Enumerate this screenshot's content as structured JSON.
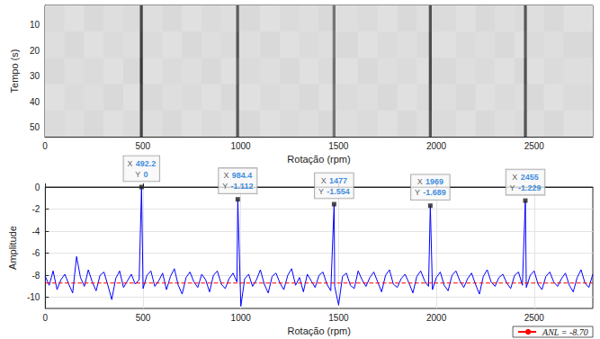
{
  "chart_data": [
    {
      "type": "heatmap",
      "xlabel": "Rotação (rpm)",
      "ylabel": "Tempo (s)",
      "xlim": [
        0,
        2800
      ],
      "xticks": [
        0,
        500,
        1000,
        1500,
        2000,
        2500
      ],
      "ylim": [
        53.5,
        2.5
      ],
      "yticks": [
        10,
        20,
        30,
        40,
        50
      ],
      "grid": false,
      "x_edges": [
        0,
        100,
        200,
        300,
        400,
        485,
        500,
        600,
        700,
        800,
        900,
        977,
        992,
        1100,
        1200,
        1300,
        1400,
        1470,
        1485,
        1600,
        1700,
        1800,
        1900,
        1962,
        1977,
        2100,
        2200,
        2300,
        2400,
        2448,
        2463,
        2550,
        2650,
        2800
      ],
      "y_edges": [
        2.5,
        12.7,
        22.9,
        33.1,
        43.3,
        53.5
      ],
      "clim": [
        -10,
        0
      ],
      "cells": [
        [
          -8.6,
          -8.8,
          -8.5,
          -8.7,
          -8.6,
          -2.8,
          -8.7,
          -8.5,
          -8.8,
          -8.6,
          -8.7,
          -3.6,
          -8.5,
          -8.8,
          -8.6,
          -8.7,
          -8.5,
          -4.6,
          -8.7,
          -8.6,
          -8.8,
          -8.5,
          -8.7,
          -3.2,
          -8.6,
          -8.8,
          -8.5,
          -8.7,
          -8.6,
          -3.4,
          -8.7,
          -8.5,
          -8.8
        ],
        [
          -8.7,
          -8.5,
          -8.8,
          -8.6,
          -8.7,
          -2.5,
          -8.6,
          -8.8,
          -8.5,
          -8.7,
          -8.6,
          -3.3,
          -8.7,
          -8.5,
          -8.8,
          -8.6,
          -8.7,
          -4.8,
          -8.5,
          -8.8,
          -8.6,
          -8.7,
          -8.5,
          -3.0,
          -8.8,
          -8.6,
          -8.7,
          -8.5,
          -8.8,
          -3.6,
          -8.6,
          -8.7,
          -8.5
        ],
        [
          -8.5,
          -8.7,
          -8.6,
          -8.8,
          -8.5,
          -2.2,
          -8.8,
          -8.6,
          -8.7,
          -8.5,
          -8.8,
          -3.8,
          -8.6,
          -8.7,
          -8.5,
          -8.8,
          -8.6,
          -4.4,
          -8.8,
          -8.5,
          -8.7,
          -8.6,
          -8.8,
          -2.9,
          -8.5,
          -8.7,
          -8.6,
          -8.8,
          -8.5,
          -3.2,
          -8.8,
          -8.6,
          -8.7
        ],
        [
          -8.8,
          -8.6,
          -8.7,
          -8.5,
          -8.8,
          -2.6,
          -8.5,
          -8.7,
          -8.6,
          -8.8,
          -8.5,
          -3.5,
          -8.8,
          -8.6,
          -8.7,
          -8.5,
          -8.8,
          -4.7,
          -8.6,
          -8.7,
          -8.5,
          -8.8,
          -8.6,
          -3.1,
          -8.7,
          -8.5,
          -8.8,
          -8.6,
          -8.7,
          -3.5,
          -8.5,
          -8.8,
          -8.6
        ],
        [
          -8.6,
          -8.7,
          -8.5,
          -8.8,
          -8.6,
          -2.7,
          -8.7,
          -8.5,
          -8.8,
          -8.6,
          -8.7,
          -3.4,
          -8.5,
          -8.8,
          -8.6,
          -8.7,
          -8.5,
          -4.5,
          -8.7,
          -8.6,
          -8.8,
          -8.5,
          -8.7,
          -3.3,
          -8.6,
          -8.8,
          -8.5,
          -8.7,
          -8.6,
          -3.3,
          -8.7,
          -8.5,
          -8.8
        ]
      ]
    },
    {
      "type": "line",
      "xlabel": "Rotação (rpm)",
      "ylabel": "Amplitude",
      "color": "#0000ff",
      "xlim": [
        0,
        2800
      ],
      "xticks": [
        0,
        500,
        1000,
        1500,
        2000,
        2500
      ],
      "ylim": [
        -11,
        0
      ],
      "yticks": [
        0,
        -2,
        -4,
        -6,
        -8,
        -10
      ],
      "grid": true,
      "legend": "lower right",
      "x": [
        0,
        20,
        40,
        60,
        80,
        100,
        120,
        140,
        160,
        180,
        200,
        220,
        240,
        260,
        280,
        300,
        320,
        340,
        360,
        380,
        400,
        420,
        440,
        460,
        480,
        492.2,
        500,
        520,
        540,
        560,
        580,
        600,
        620,
        640,
        660,
        680,
        700,
        720,
        740,
        760,
        780,
        800,
        820,
        840,
        860,
        880,
        900,
        920,
        940,
        960,
        980,
        984.4,
        1000,
        1020,
        1040,
        1060,
        1080,
        1100,
        1120,
        1140,
        1160,
        1180,
        1200,
        1220,
        1240,
        1260,
        1280,
        1300,
        1320,
        1340,
        1360,
        1380,
        1400,
        1420,
        1440,
        1460,
        1477,
        1480,
        1500,
        1520,
        1540,
        1560,
        1580,
        1600,
        1620,
        1640,
        1660,
        1680,
        1700,
        1720,
        1740,
        1760,
        1780,
        1800,
        1820,
        1840,
        1860,
        1880,
        1900,
        1920,
        1940,
        1960,
        1969,
        1980,
        2000,
        2020,
        2040,
        2060,
        2080,
        2100,
        2120,
        2140,
        2160,
        2180,
        2200,
        2220,
        2240,
        2260,
        2280,
        2300,
        2320,
        2340,
        2360,
        2380,
        2400,
        2420,
        2440,
        2455,
        2460,
        2480,
        2500,
        2520,
        2540,
        2560,
        2580,
        2600,
        2620,
        2640,
        2660,
        2680,
        2700,
        2720,
        2740,
        2760,
        2780,
        2800
      ],
      "values": [
        -8.1,
        -8.9,
        -7.6,
        -9.3,
        -8.4,
        -7.9,
        -8.8,
        -9.6,
        -6.3,
        -8.2,
        -9.0,
        -7.5,
        -8.6,
        -9.4,
        -8.0,
        -7.7,
        -8.9,
        -10.2,
        -8.3,
        -7.6,
        -9.1,
        -8.5,
        -7.9,
        -8.8,
        -8.4,
        0,
        -9.2,
        -8.0,
        -7.6,
        -9.0,
        -8.5,
        -7.8,
        -9.3,
        -8.1,
        -7.4,
        -8.9,
        -9.7,
        -8.2,
        -7.7,
        -8.6,
        -9.1,
        -7.9,
        -8.4,
        -9.5,
        -8.0,
        -7.6,
        -8.8,
        -9.2,
        -8.3,
        -7.8,
        -8.6,
        -1.112,
        -10.8,
        -8.3,
        -7.9,
        -9.0,
        -8.4,
        -7.5,
        -8.8,
        -9.6,
        -8.1,
        -7.8,
        -8.7,
        -9.3,
        -8.0,
        -7.4,
        -8.9,
        -8.2,
        -9.5,
        -7.9,
        -8.5,
        -9.1,
        -8.0,
        -7.7,
        -8.8,
        -9.4,
        -1.554,
        -9.0,
        -10.7,
        -8.1,
        -7.8,
        -8.9,
        -9.2,
        -7.6,
        -8.4,
        -9.0,
        -8.2,
        -7.7,
        -8.6,
        -9.5,
        -8.0,
        -7.5,
        -8.8,
        -9.1,
        -8.3,
        -7.9,
        -8.7,
        -9.6,
        -8.1,
        -7.6,
        -8.5,
        -9.0,
        -1.689,
        -9.3,
        -8.2,
        -7.7,
        -8.9,
        -9.4,
        -8.0,
        -7.6,
        -8.5,
        -9.1,
        -8.3,
        -7.8,
        -8.8,
        -9.7,
        -8.1,
        -7.5,
        -8.6,
        -9.0,
        -8.2,
        -7.9,
        -8.7,
        -9.2,
        -8.0,
        -7.7,
        -8.9,
        -1.229,
        -9.1,
        -8.0,
        -7.6,
        -8.8,
        -9.3,
        -8.1,
        -7.7,
        -8.6,
        -9.0,
        -8.3,
        -7.8,
        -8.9,
        -9.5,
        -8.2,
        -7.5,
        -8.7,
        -9.1,
        -7.9
      ],
      "annotation_fields": [
        "X",
        "Y"
      ],
      "annotations": [
        {
          "x": 492.2,
          "y": 0
        },
        {
          "x": 984.4,
          "y": -1.112
        },
        {
          "x": 1477,
          "y": -1.554
        },
        {
          "x": 1969,
          "y": -1.689
        },
        {
          "x": 2455,
          "y": -1.229
        }
      ],
      "reference_line": {
        "name": "ANL = -8.70",
        "value": -8.7,
        "color": "#ff0000",
        "line_style": "dashed"
      }
    }
  ]
}
